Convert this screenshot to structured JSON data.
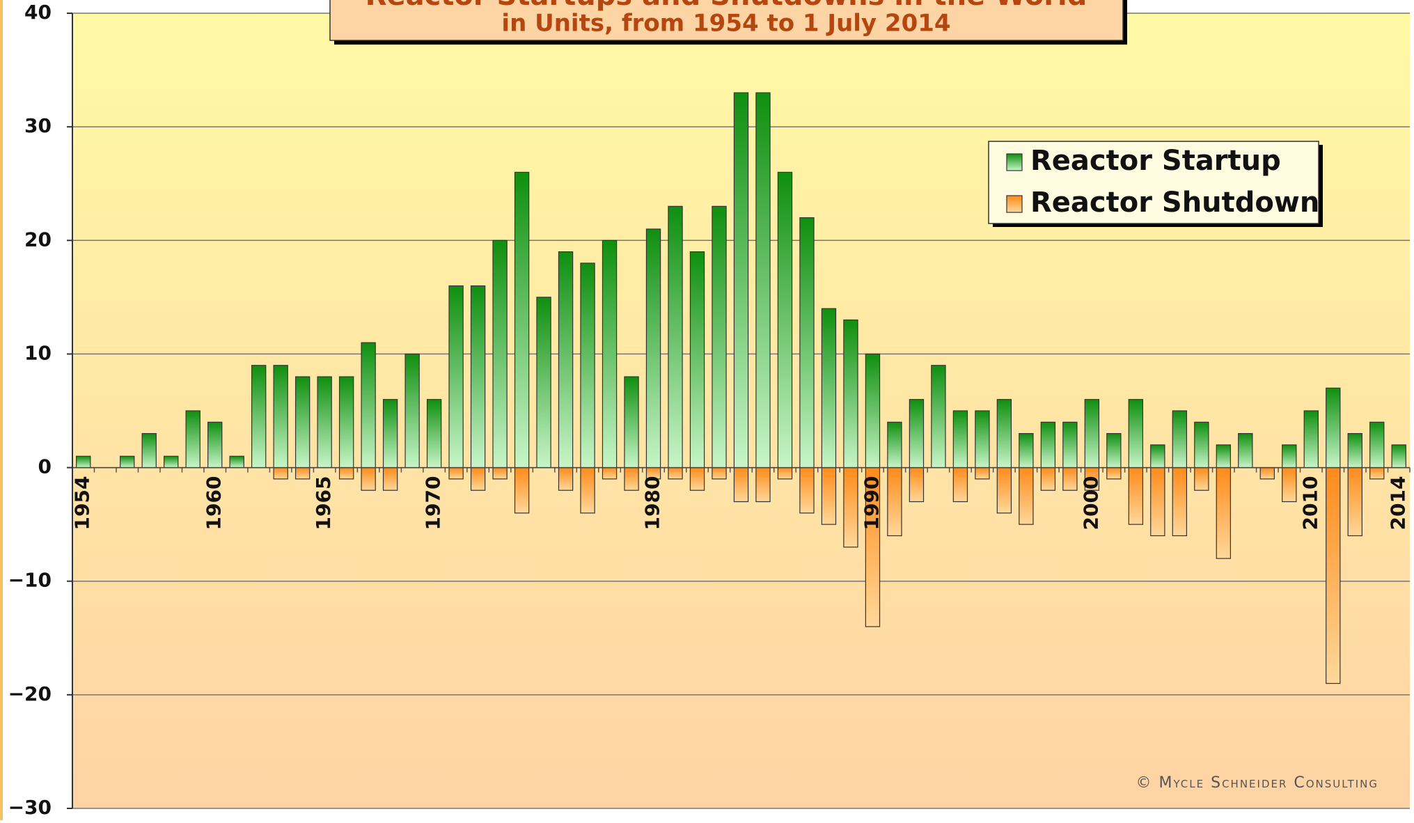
{
  "chart_data": {
    "type": "bar",
    "title": "Reactor Startups and Shutdowns in the World",
    "subtitle": "in Units, from 1954 to 1 July 2014",
    "annotation": "© Mycle Schneider Consulting",
    "categories": [
      "1954",
      null,
      null,
      null,
      null,
      null,
      "1960",
      null,
      null,
      null,
      null,
      "1965",
      null,
      null,
      null,
      null,
      "1970",
      null,
      null,
      null,
      null,
      null,
      null,
      null,
      null,
      null,
      "1980",
      null,
      null,
      null,
      null,
      null,
      null,
      null,
      null,
      null,
      "1990",
      null,
      null,
      null,
      null,
      null,
      null,
      null,
      null,
      null,
      "2000",
      null,
      null,
      null,
      null,
      null,
      null,
      null,
      null,
      null,
      "2010",
      null,
      null,
      null,
      "2014"
    ],
    "series": [
      {
        "name": "Reactor Startup",
        "color": "#1e9a1e",
        "values": [
          1,
          0,
          1,
          3,
          1,
          5,
          4,
          1,
          9,
          9,
          8,
          8,
          8,
          11,
          6,
          10,
          6,
          16,
          16,
          20,
          26,
          15,
          19,
          18,
          20,
          8,
          21,
          23,
          19,
          23,
          33,
          33,
          26,
          22,
          14,
          13,
          10,
          4,
          6,
          9,
          5,
          5,
          6,
          3,
          4,
          4,
          6,
          3,
          6,
          2,
          5,
          4,
          2,
          3,
          0,
          2,
          5,
          7,
          3,
          4,
          2
        ]
      },
      {
        "name": "Reactor Shutdown",
        "color": "#ff8a1a",
        "values": [
          0,
          0,
          0,
          0,
          0,
          0,
          0,
          0,
          0,
          -1,
          -1,
          0,
          -1,
          -2,
          -2,
          0,
          0,
          -1,
          -2,
          -1,
          -4,
          0,
          -2,
          -4,
          -1,
          -2,
          -1,
          -1,
          -2,
          -1,
          -3,
          -3,
          -1,
          -4,
          -5,
          -7,
          -14,
          -6,
          -3,
          0,
          -3,
          -1,
          -4,
          -5,
          -2,
          -2,
          -2,
          -1,
          -5,
          -6,
          -6,
          -2,
          -8,
          0,
          -1,
          -3,
          0,
          -19,
          -6,
          -1,
          0
        ]
      }
    ],
    "ylim": [
      -30,
      40
    ],
    "yticks": [
      {
        "value": -30,
        "label": "−30"
      },
      {
        "value": -20,
        "label": "−20"
      },
      {
        "value": -10,
        "label": "−10"
      },
      0,
      10,
      20,
      30,
      40
    ],
    "grid": true,
    "legend": "upper right"
  }
}
